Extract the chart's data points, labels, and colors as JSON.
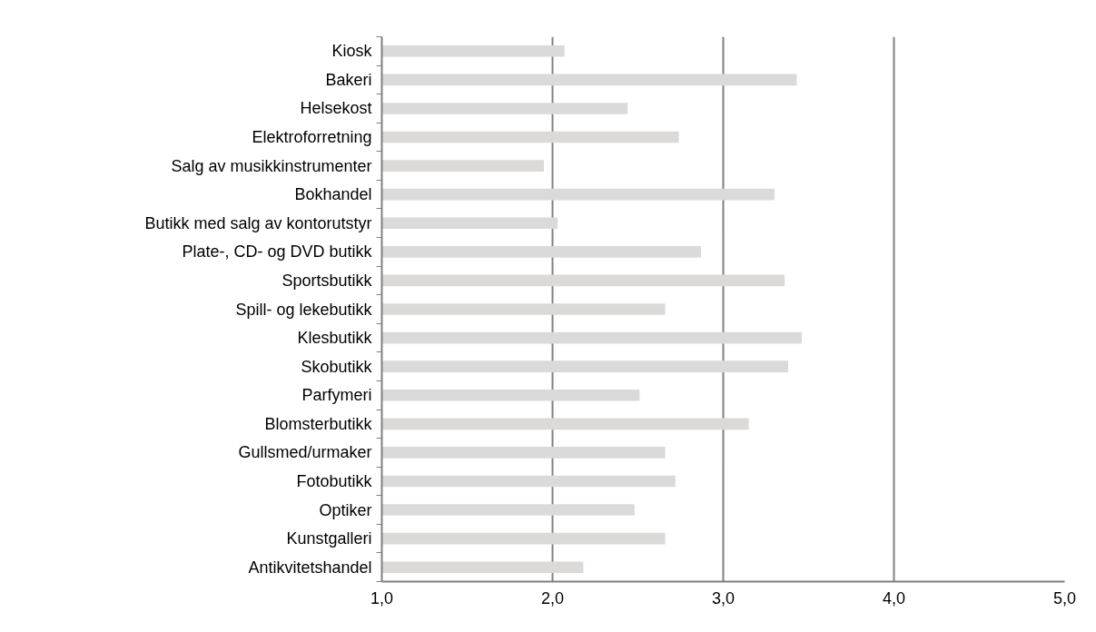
{
  "chart_data": {
    "type": "bar",
    "orientation": "horizontal",
    "categories": [
      "Kiosk",
      "Bakeri",
      "Helsekost",
      "Elektroforretning",
      "Salg av musikkinstrumenter",
      "Bokhandel",
      "Butikk med salg av kontorutstyr",
      "Plate-, CD- og DVD butikk",
      "Sportsbutikk",
      "Spill- og lekebutikk",
      "Klesbutikk",
      "Skobutikk",
      "Parfymeri",
      "Blomsterbutikk",
      "Gullsmed/urmaker",
      "Fotobutikk",
      "Optiker",
      "Kunstgalleri",
      "Antikvitetshandel"
    ],
    "values": [
      2.07,
      3.43,
      2.44,
      2.74,
      1.95,
      3.3,
      2.03,
      2.87,
      3.36,
      2.66,
      3.46,
      3.38,
      2.51,
      3.15,
      2.66,
      2.72,
      2.48,
      2.66,
      2.18
    ],
    "color": "#dbdad8",
    "xlim": [
      1.0,
      5.0
    ],
    "xticks": [
      {
        "value": 1,
        "label": "1,0"
      },
      {
        "value": 2,
        "label": "2,0"
      },
      {
        "value": 3,
        "label": "3,0"
      },
      {
        "value": 4,
        "label": "4,0"
      },
      {
        "value": 5,
        "label": "5,0"
      }
    ],
    "grid": "x"
  }
}
